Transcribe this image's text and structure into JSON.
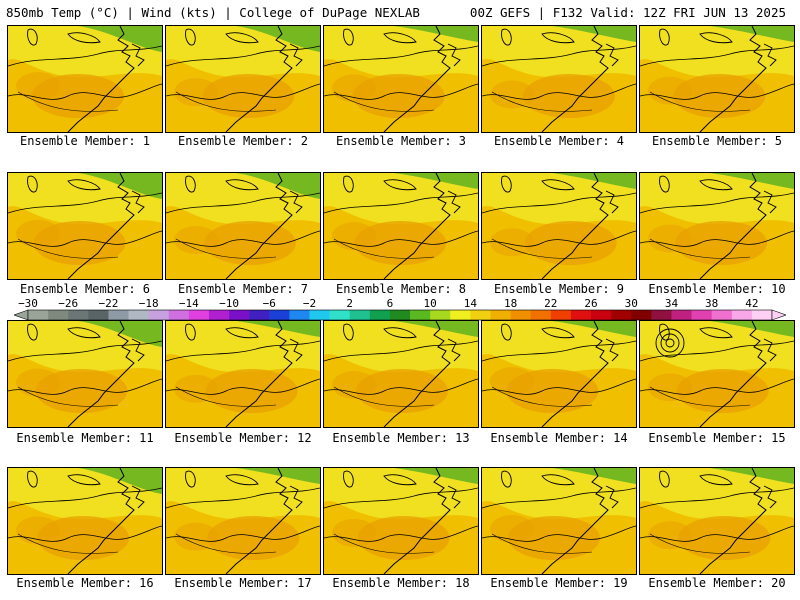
{
  "header": {
    "left": "850mb Temp (°C) | Wind (kts) | College of DuPage NEXLAB",
    "right": "00Z GEFS | F132 Valid: 12Z FRI JUN 13 2025"
  },
  "panels": [
    {
      "label": "Ensemble Member: 1"
    },
    {
      "label": "Ensemble Member: 2"
    },
    {
      "label": "Ensemble Member: 3"
    },
    {
      "label": "Ensemble Member: 4"
    },
    {
      "label": "Ensemble Member: 5"
    },
    {
      "label": "Ensemble Member: 6"
    },
    {
      "label": "Ensemble Member: 7"
    },
    {
      "label": "Ensemble Member: 8"
    },
    {
      "label": "Ensemble Member: 9"
    },
    {
      "label": "Ensemble Member: 10"
    },
    {
      "label": "Ensemble Member: 11"
    },
    {
      "label": "Ensemble Member: 12"
    },
    {
      "label": "Ensemble Member: 13"
    },
    {
      "label": "Ensemble Member: 14"
    },
    {
      "label": "Ensemble Member: 15"
    },
    {
      "label": "Ensemble Member: 16"
    },
    {
      "label": "Ensemble Member: 17"
    },
    {
      "label": "Ensemble Member: 18"
    },
    {
      "label": "Ensemble Member: 19"
    },
    {
      "label": "Ensemble Member: 20"
    }
  ],
  "colorbar": {
    "labels": [
      "−30",
      "−26",
      "−22",
      "−18",
      "−14",
      "−10",
      "−6",
      "−2",
      "2",
      "6",
      "10",
      "14",
      "18",
      "22",
      "26",
      "30",
      "34",
      "38",
      "42"
    ],
    "colors": [
      "#9aa59a",
      "#7f8a7f",
      "#6b7676",
      "#596466",
      "#8e9aa6",
      "#b0b8c4",
      "#c7a0e0",
      "#d070e0",
      "#e040e0",
      "#b020d0",
      "#7a10c8",
      "#4020c0",
      "#1a40d8",
      "#1e88f0",
      "#20c8f0",
      "#30e0c8",
      "#20c090",
      "#10a050",
      "#208a20",
      "#5ab820",
      "#a8d820",
      "#f0f020",
      "#f0d010",
      "#f0b000",
      "#f09000",
      "#f07000",
      "#f04000",
      "#e01010",
      "#c80010",
      "#a00000",
      "#800000",
      "#901040",
      "#c02080",
      "#e040b0",
      "#f070d0",
      "#f8a8e8",
      "#ffd0f4"
    ]
  },
  "palette": {
    "yellow": "#f0e020",
    "amber": "#f0c000",
    "orange": "#eaa000",
    "green": "#60b020",
    "contour": "#000000"
  }
}
